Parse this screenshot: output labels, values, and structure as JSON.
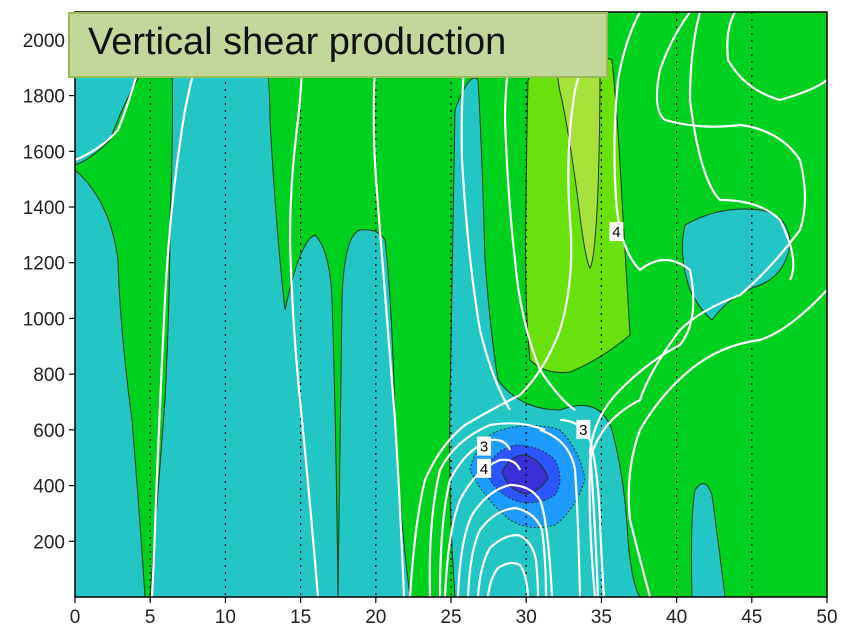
{
  "chart_data": {
    "type": "contour",
    "title": "Vertical shear production",
    "xlabel": "",
    "ylabel": "",
    "xlim": [
      0,
      50
    ],
    "ylim": [
      0,
      2100
    ],
    "x_ticks": [
      0,
      5,
      10,
      15,
      20,
      25,
      30,
      35,
      40,
      45,
      50
    ],
    "y_ticks": [
      200,
      400,
      600,
      800,
      1000,
      1200,
      1400,
      1600,
      1800,
      2000
    ],
    "grid": "dotted vertical every 5",
    "fill_colors": {
      "background": "#00d01e",
      "cyan": "#22c6c4",
      "light_green": "#69e10d",
      "yellow_green": "#a7e23a",
      "sky_blue": "#1e9bff",
      "blue": "#2b55ff",
      "dark_blue": "#3a2fd8"
    },
    "contour_line_color": "#ffffff",
    "contour_labels": [
      {
        "text": "3",
        "x": 27.2,
        "y": 540
      },
      {
        "text": "4",
        "x": 27.2,
        "y": 460
      },
      {
        "text": "3",
        "x": 33.8,
        "y": 600
      },
      {
        "text": "4",
        "x": 36.0,
        "y": 1310
      }
    ]
  }
}
